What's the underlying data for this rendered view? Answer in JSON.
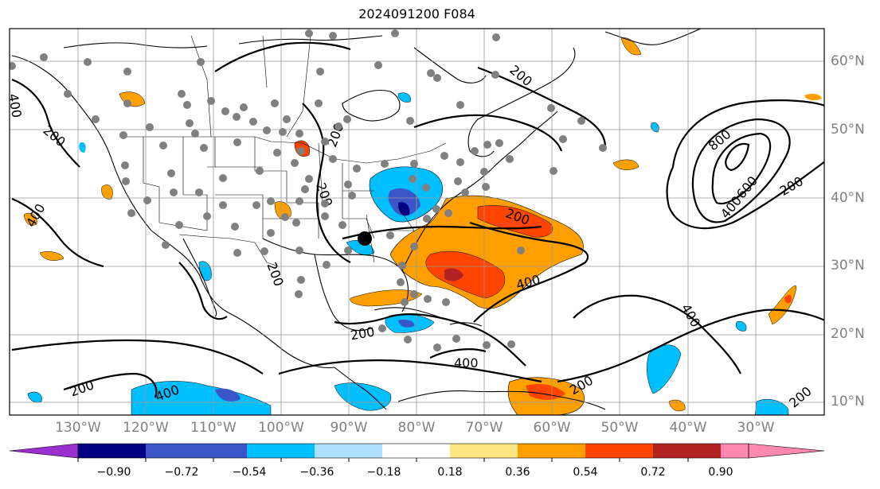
{
  "title": "2024091200 F084",
  "lat_labels": [
    "60°N",
    "50°N",
    "40°N",
    "30°N",
    "20°N",
    "10°N"
  ],
  "lon_labels": [
    "130°W",
    "120°W",
    "110°W",
    "100°W",
    "90°W",
    "80°W",
    "70°W",
    "60°W",
    "50°W",
    "40°W",
    "30°W"
  ],
  "colorbar": {
    "ticks": [
      "−0.90",
      "−0.72",
      "−0.54",
      "−0.36",
      "−0.18",
      "0.18",
      "0.36",
      "0.54",
      "0.72",
      "0.90"
    ],
    "colors": [
      "#9b30d0",
      "#000080",
      "#3a55c8",
      "#00bfff",
      "#aee0ff",
      "#ffffff",
      "#ffe680",
      "#ffa000",
      "#ff4500",
      "#b22222",
      "#ff88b0"
    ]
  },
  "contour_labels": [
    "400",
    "200",
    "400",
    "800",
    "600",
    "400",
    "200",
    "200",
    "400",
    "200",
    "200",
    "400",
    "400",
    "200",
    "200",
    "400",
    "200",
    "200",
    "200",
    "200"
  ],
  "map": {
    "grid": "on",
    "contour_style": "black solid",
    "marker_color": "#808080"
  }
}
